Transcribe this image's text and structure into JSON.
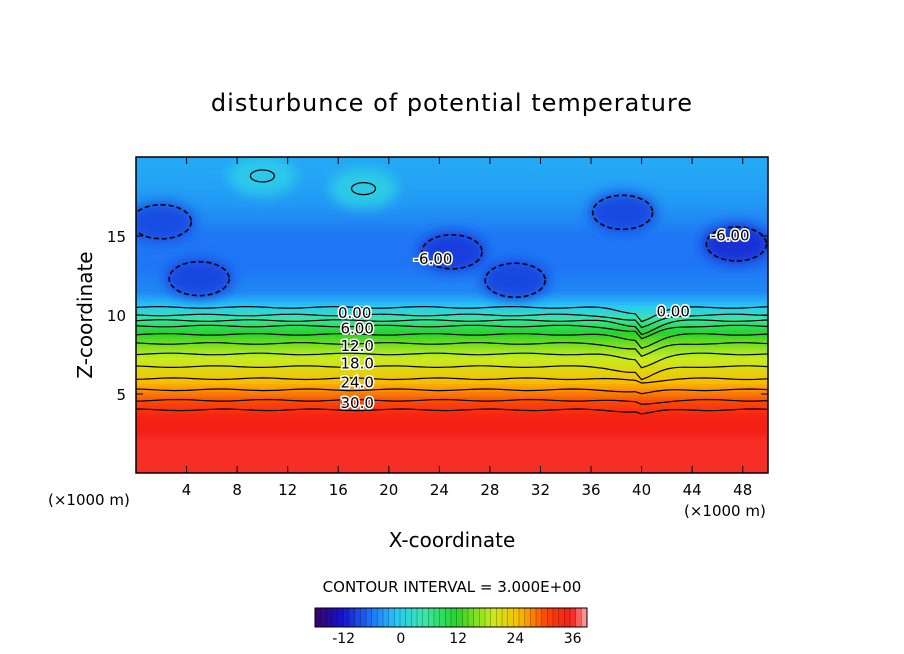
{
  "chart_data": {
    "type": "heatmap",
    "title": "disturbunce of potential temperature",
    "xlabel": "X-coordinate",
    "ylabel": "Z-coordinate",
    "x_unit_left": "(×1000 m)",
    "x_unit_right": "(×1000 m)",
    "xlim": [
      0,
      50
    ],
    "ylim": [
      0,
      20
    ],
    "x_ticks": [
      "4",
      "8",
      "12",
      "16",
      "20",
      "24",
      "28",
      "32",
      "36",
      "40",
      "44",
      "48"
    ],
    "y_ticks": [
      "5",
      "10",
      "15"
    ],
    "contour_interval_label": "CONTOUR INTERVAL = 3.000E+00",
    "colorbar": {
      "min": -18,
      "max": 39,
      "tick_labels": [
        "-12",
        "0",
        "12",
        "24",
        "36"
      ],
      "tick_values": [
        -12,
        0,
        12,
        24,
        36
      ]
    },
    "contour_labels": [
      {
        "text": "0.00",
        "x": 17.3,
        "z": 10.2
      },
      {
        "text": "6.00",
        "x": 17.5,
        "z": 9.2
      },
      {
        "text": "12.0",
        "x": 17.5,
        "z": 8.1
      },
      {
        "text": "18.0",
        "x": 17.5,
        "z": 7.0
      },
      {
        "text": "24.0",
        "x": 17.5,
        "z": 5.8
      },
      {
        "text": "30.0",
        "x": 17.5,
        "z": 4.5
      },
      {
        "text": "-6.00",
        "x": 23.5,
        "z": 13.6
      },
      {
        "text": "0.00",
        "x": 42.5,
        "z": 10.3
      },
      {
        "text": "-6.00",
        "x": 47.0,
        "z": 15.1
      }
    ],
    "vertical_profile": {
      "z": [
        0,
        2,
        3.6,
        4.2,
        4.8,
        5.5,
        6.2,
        7.0,
        7.8,
        8.6,
        9.3,
        10.0,
        10.8,
        11.5,
        13,
        15,
        17,
        19,
        20
      ],
      "value": [
        36,
        36,
        35,
        32,
        29,
        26,
        23,
        20,
        17,
        13,
        9,
        3,
        -2,
        -5,
        -6,
        -6,
        -4,
        -3,
        -3
      ]
    },
    "cold_anomalies": [
      {
        "x": 2.0,
        "z": 15.9,
        "strength": -4
      },
      {
        "x": 5.0,
        "z": 12.3,
        "strength": -4
      },
      {
        "x": 25.0,
        "z": 14.0,
        "strength": -4
      },
      {
        "x": 30.0,
        "z": 12.2,
        "strength": -4
      },
      {
        "x": 38.5,
        "z": 16.5,
        "strength": -5
      },
      {
        "x": 47.5,
        "z": 14.5,
        "strength": -5
      }
    ],
    "warm_anomalies": [
      {
        "x": 18.0,
        "z": 18.0,
        "strength": 4
      },
      {
        "x": 10.0,
        "z": 18.8,
        "strength": 3
      }
    ],
    "wave_disturbance_x": 39.5
  }
}
